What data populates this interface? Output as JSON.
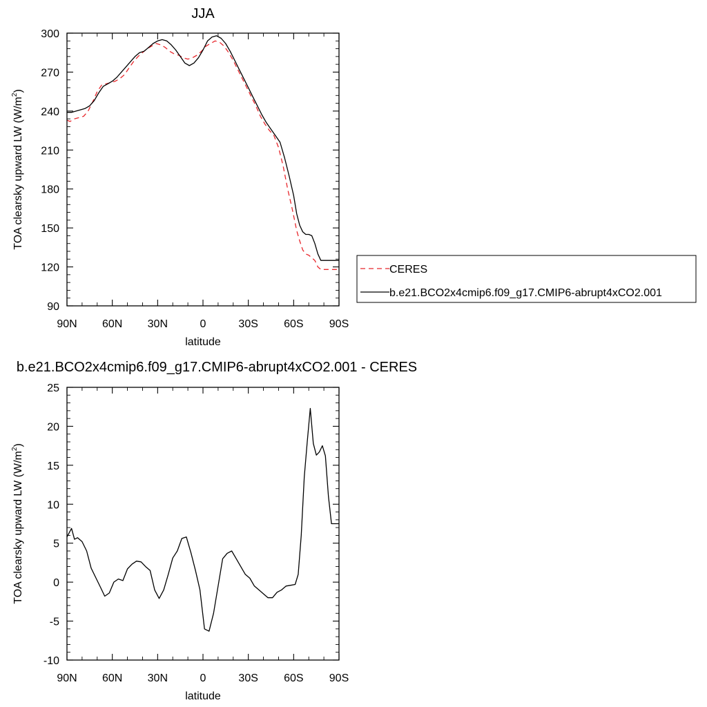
{
  "chart_data": [
    {
      "type": "line",
      "title": "JJA",
      "xlabel": "latitude",
      "ylabel": "TOA clearsky upward LW (W/m",
      "ylabel_sup": "2",
      "ylabel_close": ")",
      "xlim": [
        90,
        -90
      ],
      "ylim": [
        90,
        300
      ],
      "x_ticks": [
        {
          "value": 90,
          "label": "90N"
        },
        {
          "value": 60,
          "label": "60N"
        },
        {
          "value": 30,
          "label": "30N"
        },
        {
          "value": 0,
          "label": "0"
        },
        {
          "value": -30,
          "label": "30S"
        },
        {
          "value": -60,
          "label": "60S"
        },
        {
          "value": -90,
          "label": "90S"
        }
      ],
      "y_ticks": [
        {
          "value": 90,
          "label": "90"
        },
        {
          "value": 120,
          "label": "120"
        },
        {
          "value": 150,
          "label": "150"
        },
        {
          "value": 180,
          "label": "180"
        },
        {
          "value": 210,
          "label": "210"
        },
        {
          "value": 240,
          "label": "240"
        },
        {
          "value": 270,
          "label": "270"
        },
        {
          "value": 300,
          "label": "300"
        }
      ],
      "legend_position": "right",
      "series": [
        {
          "name": "CERES",
          "color": "#e8262b",
          "dash": "dashed",
          "x": [
            90,
            88,
            85,
            82,
            79,
            76,
            73,
            70,
            67,
            64,
            61,
            58,
            55,
            52,
            49,
            46,
            43,
            40,
            37,
            34,
            31,
            28,
            25,
            22,
            19,
            16,
            13,
            10,
            7,
            4,
            1,
            -2,
            -5,
            -8,
            -11,
            -14,
            -17,
            -20,
            -23,
            -26,
            -29,
            -32,
            -35,
            -38,
            -41,
            -44,
            -47,
            -50,
            -53,
            -56,
            -59,
            -62,
            -64,
            -66,
            -68,
            -70,
            -72,
            -74,
            -76,
            -78,
            -80,
            -82,
            -84,
            -86,
            -88,
            -90
          ],
          "y": [
            233,
            232,
            234,
            235,
            236,
            240,
            247,
            255,
            260,
            261,
            262,
            263,
            265,
            268,
            273,
            278,
            282,
            285,
            288,
            290,
            292,
            291,
            289,
            286,
            284,
            283,
            281,
            280,
            281,
            283,
            286,
            290,
            292,
            294,
            293,
            290,
            285,
            279,
            272,
            265,
            258,
            251,
            244,
            236,
            230,
            225,
            221,
            212,
            198,
            180,
            165,
            148,
            140,
            133,
            130,
            129,
            127,
            125,
            120,
            118,
            118,
            118,
            118,
            118,
            118,
            118
          ]
        },
        {
          "name": "b.e21.BCO2x4cmip6.f09_g17.CMIP6-abrupt4xCO2.001",
          "color": "#000000",
          "dash": "solid",
          "x": [
            90,
            87,
            84,
            81,
            78,
            75,
            72,
            69,
            66,
            63,
            60,
            57,
            54,
            51,
            48,
            45,
            42,
            39,
            36,
            33,
            30,
            27,
            24,
            21,
            18,
            15,
            12,
            9,
            6,
            3,
            0,
            -3,
            -6,
            -9,
            -12,
            -15,
            -18,
            -21,
            -24,
            -27,
            -30,
            -33,
            -36,
            -39,
            -42,
            -45,
            -48,
            -51,
            -54,
            -57,
            -60,
            -62,
            -64,
            -66,
            -68,
            -70,
            -72,
            -74,
            -76,
            -78,
            -80,
            -82,
            -84,
            -86,
            -88,
            -90
          ],
          "y": [
            239,
            239,
            240,
            241,
            242,
            244,
            248,
            254,
            259,
            261,
            263,
            266,
            270,
            274,
            278,
            282,
            285,
            286,
            289,
            292,
            294,
            295,
            294,
            291,
            287,
            282,
            277,
            275,
            277,
            281,
            287,
            294,
            297,
            298,
            296,
            292,
            286,
            279,
            272,
            265,
            258,
            251,
            244,
            237,
            231,
            226,
            221,
            216,
            204,
            190,
            175,
            161,
            152,
            147,
            145,
            145,
            144,
            138,
            130,
            125,
            125,
            125,
            125,
            125,
            125,
            125
          ]
        }
      ]
    },
    {
      "type": "line",
      "title": "b.e21.BCO2x4cmip6.f09_g17.CMIP6-abrupt4xCO2.001 - CERES",
      "xlabel": "latitude",
      "ylabel": "TOA clearsky upward LW (W/m",
      "ylabel_sup": "2",
      "ylabel_close": ")",
      "xlim": [
        90,
        -90
      ],
      "ylim": [
        -10,
        25
      ],
      "x_ticks": [
        {
          "value": 90,
          "label": "90N"
        },
        {
          "value": 60,
          "label": "60N"
        },
        {
          "value": 30,
          "label": "30N"
        },
        {
          "value": 0,
          "label": "0"
        },
        {
          "value": -30,
          "label": "30S"
        },
        {
          "value": -60,
          "label": "60S"
        },
        {
          "value": -90,
          "label": "90S"
        }
      ],
      "y_ticks": [
        {
          "value": -10,
          "label": "-10"
        },
        {
          "value": -5,
          "label": "-5"
        },
        {
          "value": 0,
          "label": "0"
        },
        {
          "value": 5,
          "label": "5"
        },
        {
          "value": 10,
          "label": "10"
        },
        {
          "value": 15,
          "label": "15"
        },
        {
          "value": 20,
          "label": "20"
        },
        {
          "value": 25,
          "label": "25"
        }
      ],
      "series": [
        {
          "color": "#000000",
          "dash": "solid",
          "x": [
            90,
            87,
            85,
            83,
            80,
            77,
            74,
            71,
            68,
            65,
            62,
            59,
            56,
            53,
            50,
            47,
            44,
            41,
            38,
            35,
            32,
            29,
            26,
            23,
            20,
            17,
            14,
            11,
            8,
            5,
            2,
            -1,
            -4,
            -7,
            -10,
            -13,
            -16,
            -19,
            -22,
            -25,
            -28,
            -31,
            -34,
            -37,
            -40,
            -43,
            -46,
            -49,
            -52,
            -55,
            -58,
            -61,
            -63,
            -65,
            -67,
            -69,
            -71,
            -73,
            -75,
            -77,
            -79,
            -81,
            -83,
            -85,
            -87,
            -90
          ],
          "y": [
            5.8,
            6.9,
            5.5,
            5.7,
            5.2,
            4.0,
            1.8,
            0.6,
            -0.6,
            -1.8,
            -1.4,
            0.0,
            0.4,
            0.2,
            1.7,
            2.3,
            2.7,
            2.6,
            2.0,
            1.5,
            -1.0,
            -2.1,
            -1.0,
            1.0,
            3.1,
            4.0,
            5.6,
            5.8,
            3.8,
            1.5,
            -1.0,
            -6.0,
            -6.3,
            -4.0,
            -0.5,
            3.0,
            3.7,
            4.0,
            3.0,
            2.0,
            1.0,
            0.5,
            -0.5,
            -1.0,
            -1.5,
            -2.0,
            -2.0,
            -1.3,
            -1.0,
            -0.5,
            -0.4,
            -0.3,
            1.0,
            6.0,
            13.5,
            18.0,
            22.3,
            17.8,
            16.3,
            16.7,
            17.5,
            16.2,
            11.0,
            7.5,
            7.5,
            7.5
          ]
        }
      ]
    }
  ]
}
